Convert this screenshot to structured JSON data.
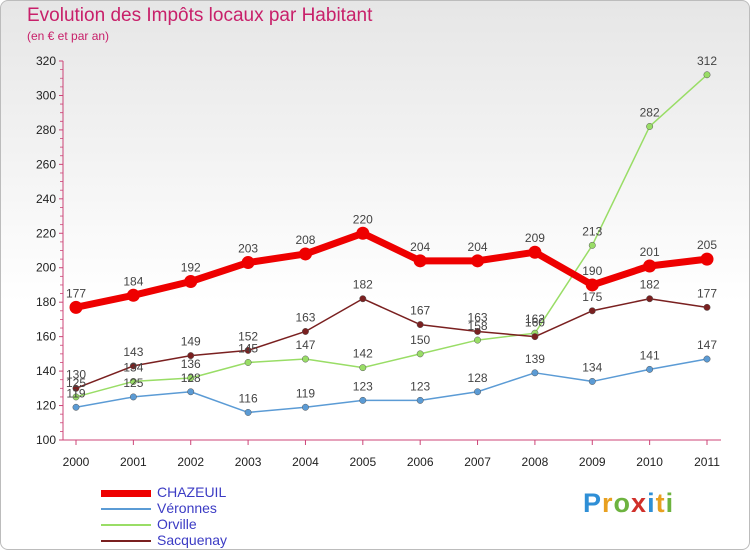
{
  "title": "Evolution des Impôts locaux par Habitant",
  "subtitle": "(en € et par an)",
  "logo": {
    "text": "Proxiti",
    "letters": [
      {
        "ch": "P",
        "color": "#2f8fd6"
      },
      {
        "ch": "r",
        "color": "#e8a020"
      },
      {
        "ch": "o",
        "color": "#6db33f"
      },
      {
        "ch": "x",
        "color": "#d0302a"
      },
      {
        "ch": "i",
        "color": "#2f8fd6"
      },
      {
        "ch": "t",
        "color": "#e8a020"
      },
      {
        "ch": "i",
        "color": "#6db33f"
      }
    ]
  },
  "chart_data": {
    "type": "line",
    "title": "Evolution des Impôts locaux par Habitant",
    "subtitle": "(en € et par an)",
    "xlabel": "",
    "ylabel": "",
    "ylim": [
      100,
      320
    ],
    "yticks": [
      100,
      120,
      140,
      160,
      180,
      200,
      220,
      240,
      260,
      280,
      300,
      320
    ],
    "categories": [
      "2000",
      "2001",
      "2002",
      "2003",
      "2004",
      "2005",
      "2006",
      "2007",
      "2008",
      "2009",
      "2010",
      "2011"
    ],
    "grid": false,
    "legend_position": "bottom-left",
    "series": [
      {
        "name": "CHAZEUIL",
        "color": "#ee0000",
        "values": [
          177,
          184,
          192,
          203,
          208,
          220,
          204,
          204,
          209,
          190,
          201,
          205
        ]
      },
      {
        "name": "Véronnes",
        "color": "#5b9bd5",
        "values": [
          119,
          125,
          128,
          116,
          119,
          123,
          123,
          128,
          139,
          134,
          141,
          147
        ]
      },
      {
        "name": "Orville",
        "color": "#99dd66",
        "values": [
          125,
          134,
          136,
          145,
          147,
          142,
          150,
          158,
          162,
          213,
          282,
          312
        ]
      },
      {
        "name": "Sacquenay",
        "color": "#7a2020",
        "values": [
          130,
          143,
          149,
          152,
          163,
          182,
          167,
          163,
          160,
          175,
          182,
          177
        ]
      }
    ]
  }
}
